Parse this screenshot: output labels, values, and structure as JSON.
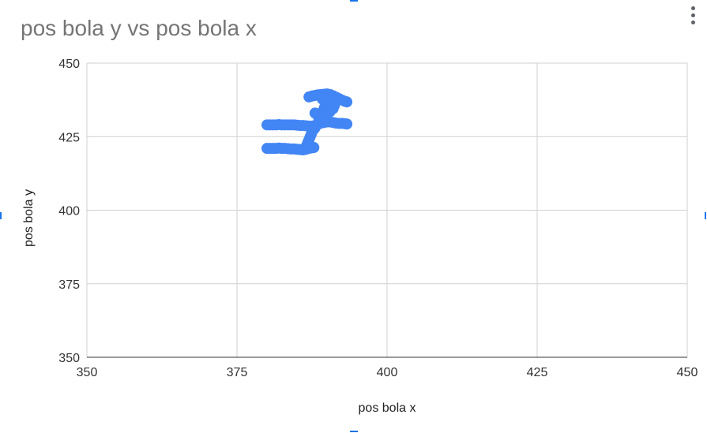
{
  "chart_data": {
    "type": "scatter",
    "title": "pos bola y vs pos bola x",
    "xlabel": "pos bola x",
    "ylabel": "pos bola y",
    "xlim": [
      350,
      450
    ],
    "ylim": [
      350,
      450
    ],
    "xticks": [
      "350",
      "375",
      "400",
      "425",
      "450"
    ],
    "yticks": [
      "450",
      "425",
      "400",
      "375",
      "350"
    ],
    "grid": true,
    "legend": "none",
    "series_color": "#4285f4",
    "series": [
      {
        "points": [
          [
            380.0,
            429.0
          ],
          [
            380.5,
            429.0
          ],
          [
            381.0,
            429.0
          ],
          [
            381.5,
            429.0
          ],
          [
            382.0,
            429.1
          ],
          [
            382.5,
            429.0
          ],
          [
            383.0,
            429.0
          ],
          [
            383.5,
            429.0
          ],
          [
            384.0,
            429.0
          ],
          [
            384.5,
            429.0
          ],
          [
            385.0,
            428.9
          ],
          [
            385.5,
            428.8
          ],
          [
            386.0,
            428.8
          ],
          [
            386.5,
            428.7
          ],
          [
            387.0,
            428.6
          ],
          [
            387.5,
            428.6
          ],
          [
            388.0,
            428.8
          ],
          [
            388.5,
            429.2
          ],
          [
            389.0,
            429.6
          ],
          [
            389.5,
            429.8
          ],
          [
            390.0,
            430.0
          ],
          [
            390.5,
            430.0
          ],
          [
            391.0,
            429.8
          ],
          [
            391.5,
            429.6
          ],
          [
            392.0,
            429.5
          ],
          [
            392.5,
            429.5
          ],
          [
            393.0,
            429.4
          ],
          [
            393.3,
            429.3
          ],
          [
            380.0,
            421.0
          ],
          [
            380.5,
            421.0
          ],
          [
            381.0,
            421.0
          ],
          [
            381.5,
            421.0
          ],
          [
            382.0,
            421.1
          ],
          [
            382.5,
            421.0
          ],
          [
            383.0,
            421.0
          ],
          [
            383.5,
            420.9
          ],
          [
            384.0,
            420.8
          ],
          [
            384.5,
            420.8
          ],
          [
            385.0,
            420.7
          ],
          [
            385.5,
            420.6
          ],
          [
            386.0,
            420.5
          ],
          [
            386.5,
            420.7
          ],
          [
            387.0,
            421.0
          ],
          [
            387.5,
            421.2
          ],
          [
            387.8,
            421.3
          ],
          [
            386.6,
            422.0
          ],
          [
            386.8,
            423.0
          ],
          [
            387.0,
            424.0
          ],
          [
            387.2,
            425.0
          ],
          [
            387.4,
            426.0
          ],
          [
            387.6,
            427.0
          ],
          [
            387.8,
            427.5
          ],
          [
            388.0,
            428.0
          ],
          [
            388.3,
            429.0
          ],
          [
            388.6,
            430.0
          ],
          [
            388.8,
            431.0
          ],
          [
            389.0,
            432.0
          ],
          [
            389.2,
            433.0
          ],
          [
            389.4,
            434.0
          ],
          [
            389.6,
            435.0
          ],
          [
            389.8,
            436.0
          ],
          [
            390.0,
            437.0
          ],
          [
            387.0,
            438.5
          ],
          [
            387.5,
            438.8
          ],
          [
            388.0,
            439.0
          ],
          [
            388.5,
            439.2
          ],
          [
            389.0,
            439.3
          ],
          [
            389.5,
            439.4
          ],
          [
            390.0,
            439.5
          ],
          [
            390.5,
            439.3
          ],
          [
            391.0,
            438.9
          ],
          [
            391.5,
            438.4
          ],
          [
            392.0,
            437.9
          ],
          [
            392.5,
            437.4
          ],
          [
            393.0,
            437.0
          ],
          [
            393.3,
            436.8
          ],
          [
            388.0,
            433.0
          ],
          [
            388.5,
            432.0
          ],
          [
            389.0,
            431.0
          ],
          [
            389.5,
            431.5
          ],
          [
            390.0,
            432.5
          ],
          [
            390.5,
            433.5
          ],
          [
            391.0,
            434.5
          ],
          [
            389.2,
            437.8
          ],
          [
            390.5,
            436.5
          ],
          [
            391.2,
            435.5
          ]
        ]
      }
    ]
  }
}
